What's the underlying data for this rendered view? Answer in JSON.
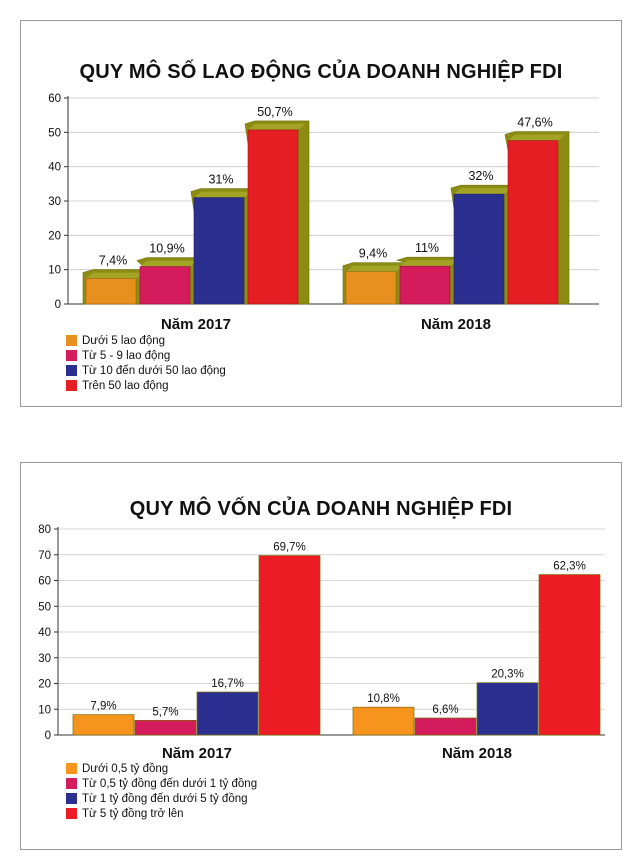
{
  "chart_data": [
    {
      "type": "bar",
      "title": "QUY MÔ SỐ LAO ĐỘNG CỦA DOANH NGHIỆP FDI",
      "categories": [
        "Năm 2017",
        "Năm 2018"
      ],
      "series": [
        {
          "name": "Dưới 5 lao động",
          "color": "#e8901e",
          "values": [
            7.4,
            9.4
          ],
          "labels": [
            "7,4%",
            "9,4%"
          ]
        },
        {
          "name": "Từ 5 - 9 lao động",
          "color": "#d41b5c",
          "values": [
            10.9,
            11
          ],
          "labels": [
            "10,9%",
            "11%"
          ]
        },
        {
          "name": "Từ 10 đến dưới 50 lao động",
          "color": "#2b3090",
          "values": [
            31,
            32
          ],
          "labels": [
            "31%",
            "32%"
          ]
        },
        {
          "name": "Trên 50 lao động",
          "color": "#e51e24",
          "values": [
            50.7,
            47.6
          ],
          "labels": [
            "50,7%",
            "47,6%"
          ]
        }
      ],
      "yticks": [
        "0",
        "10",
        "20",
        "30",
        "40",
        "50",
        "60"
      ],
      "ylim": [
        0,
        60
      ],
      "grid": true,
      "style": "3d-step",
      "legend_position": "bottom-left"
    },
    {
      "type": "bar",
      "title": "QUY MÔ VỐN CỦA DOANH NGHIỆP FDI",
      "categories": [
        "Năm 2017",
        "Năm 2018"
      ],
      "series": [
        {
          "name": "Dưới 0,5 tỷ đồng",
          "color": "#f7941d",
          "values": [
            7.9,
            10.8
          ],
          "labels": [
            "7,9%",
            "10,8%"
          ]
        },
        {
          "name": "Từ 0,5 tỷ đồng đến dưới 1 tỷ đồng",
          "color": "#d41b5c",
          "values": [
            5.7,
            6.6
          ],
          "labels": [
            "5,7%",
            "6,6%"
          ]
        },
        {
          "name": "Từ 1 tỷ đồng đến dưới 5 tỷ đồng",
          "color": "#2b3090",
          "values": [
            16.7,
            20.3
          ],
          "labels": [
            "16,7%",
            "20,3%"
          ]
        },
        {
          "name": "Từ 5 tỷ đồng trở lên",
          "color": "#ed1c24",
          "values": [
            69.7,
            62.3
          ],
          "labels": [
            "69,7%",
            "62,3%"
          ]
        }
      ],
      "yticks": [
        "0",
        "10",
        "20",
        "30",
        "40",
        "50",
        "60",
        "70",
        "80"
      ],
      "ylim": [
        0,
        80
      ],
      "grid": true,
      "style": "flat",
      "legend_position": "bottom-left"
    }
  ]
}
